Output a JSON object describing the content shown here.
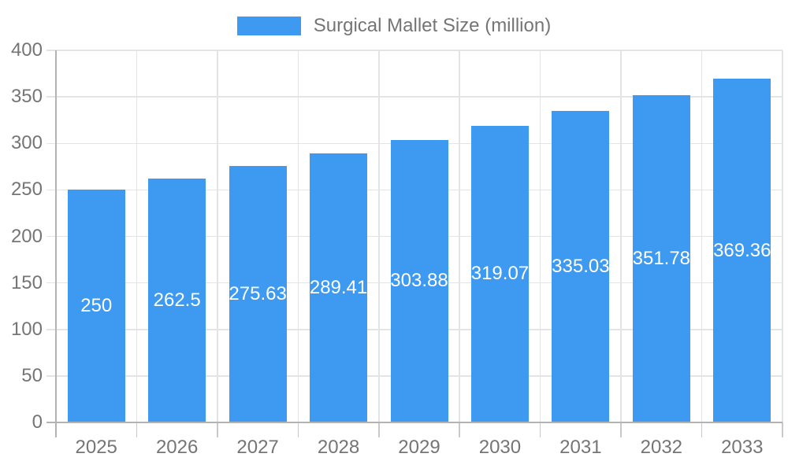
{
  "chart_data": {
    "type": "bar",
    "title": "",
    "legend_label": "Surgical Mallet Size (million)",
    "legend_position": "top",
    "categories": [
      "2025",
      "2026",
      "2027",
      "2028",
      "2029",
      "2030",
      "2031",
      "2032",
      "2033"
    ],
    "series": [
      {
        "name": "Surgical Mallet Size (million)",
        "values": [
          250,
          262.5,
          275.63,
          289.41,
          303.88,
          319.07,
          335.03,
          351.78,
          369.36
        ],
        "value_labels": [
          "250",
          "262.5",
          "275.63",
          "289.41",
          "303.88",
          "319.07",
          "335.03",
          "351.78",
          "369.36"
        ]
      }
    ],
    "xlabel": "",
    "ylabel": "",
    "ylim": [
      0,
      400
    ],
    "ytick_step": 50,
    "yticks": [
      0,
      50,
      100,
      150,
      200,
      250,
      300,
      350,
      400
    ],
    "grid": true,
    "value_labels_shown": true,
    "value_label_position": "center-of-bar",
    "colors": {
      "bar": "#3d9af0",
      "grid": "#e4e4e4",
      "axis": "#b3b3b3",
      "category_tick": "#c9c9c9",
      "axis_label": "#757575",
      "value_label": "#ffffff",
      "background": "#ffffff"
    }
  }
}
